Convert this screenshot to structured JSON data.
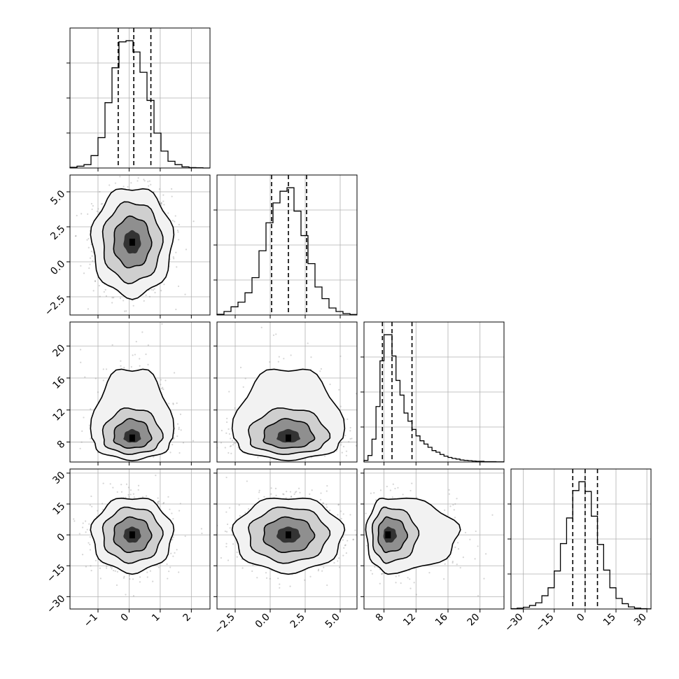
{
  "chart_data": {
    "type": "corner",
    "parameters": 4,
    "diagonal_type": "histogram",
    "off_diagonal_type": "scatter-density-contour",
    "grid": true,
    "quantile_lines": "dashed",
    "axes": [
      {
        "range": [
          -1.9,
          2.6
        ],
        "ticks": [
          -1,
          0,
          1,
          2
        ],
        "tick_labels": [
          "−1",
          "0",
          "1",
          "2"
        ]
      },
      {
        "range": [
          -3.8,
          6.2
        ],
        "ticks": [
          -2.5,
          0.0,
          2.5,
          5.0
        ],
        "tick_labels": [
          "−2.5",
          "0.0",
          "2.5",
          "5.0"
        ]
      },
      {
        "range": [
          5.5,
          23.0
        ],
        "ticks": [
          8,
          12,
          16,
          20
        ],
        "tick_labels": [
          "8",
          "12",
          "16",
          "20"
        ]
      },
      {
        "range": [
          -36,
          32
        ],
        "ticks": [
          -30,
          -15,
          0,
          15,
          30
        ],
        "tick_labels": [
          "−30",
          "−15",
          "0",
          "15",
          "30"
        ]
      }
    ],
    "histograms": [
      {
        "param": 0,
        "bin_edges": [
          -1.9,
          -1.675,
          -1.45,
          -1.225,
          -1.0,
          -0.775,
          -0.55,
          -0.325,
          -0.1,
          0.125,
          0.35,
          0.575,
          0.8,
          1.025,
          1.25,
          1.475,
          1.7,
          1.925,
          2.15,
          2.375,
          2.6
        ],
        "heights": [
          0.3,
          0.8,
          1.5,
          5.5,
          13.5,
          29.0,
          44.5,
          56.0,
          56.5,
          51.5,
          42.5,
          30.0,
          15.5,
          7.5,
          3.0,
          1.5,
          0.5,
          0.2,
          0.1,
          0.0
        ],
        "quantiles": [
          -0.35,
          0.15,
          0.7
        ]
      },
      {
        "param": 1,
        "bin_edges": [
          -3.8,
          -3.3,
          -2.8,
          -2.3,
          -1.8,
          -1.3,
          -0.8,
          -0.3,
          0.2,
          0.7,
          1.2,
          1.7,
          2.2,
          2.7,
          3.2,
          3.7,
          4.2,
          4.7,
          5.2,
          5.7,
          6.2
        ],
        "heights": [
          0.3,
          1.5,
          3.5,
          5.5,
          9.5,
          16.0,
          27.5,
          39.5,
          48.0,
          53.0,
          54.5,
          44.5,
          34.0,
          22.0,
          12.0,
          7.0,
          3.0,
          1.5,
          0.6,
          0.2
        ],
        "quantiles": [
          0.1,
          1.3,
          2.6
        ]
      },
      {
        "param": 2,
        "bin_edges": [
          5.5,
          6.0,
          6.5,
          7.0,
          7.5,
          8.0,
          8.5,
          9.0,
          9.5,
          10.0,
          10.5,
          11.0,
          11.5,
          12.0,
          12.5,
          13.0,
          13.5,
          14.0,
          14.5,
          15.0,
          15.5,
          16.0,
          16.5,
          17.0,
          17.5,
          18.0,
          18.5,
          19.0,
          19.5,
          20.0,
          20.5,
          21.0,
          21.5,
          22.0,
          22.5,
          23.0
        ],
        "heights": [
          0.5,
          2.0,
          7.0,
          17.0,
          31.0,
          39.0,
          39.0,
          32.5,
          25.0,
          20.5,
          15.0,
          12.5,
          10.0,
          8.0,
          6.5,
          5.5,
          4.5,
          3.5,
          3.0,
          2.3,
          1.8,
          1.4,
          1.1,
          0.9,
          0.6,
          0.5,
          0.4,
          0.3,
          0.2,
          0.2,
          0.1,
          0.1,
          0.1,
          0.05,
          0.05
        ],
        "quantiles": [
          7.8,
          9.0,
          11.5
        ]
      },
      {
        "param": 3,
        "bin_edges": [
          -36,
          -33,
          -30,
          -27,
          -24,
          -21,
          -18,
          -15,
          -12,
          -9,
          -6,
          -3,
          0,
          3,
          6,
          9,
          12,
          15,
          18,
          21,
          24,
          27,
          30,
          32
        ],
        "heights": [
          0.2,
          0.5,
          1.0,
          2.0,
          3.5,
          7.5,
          12.0,
          21.5,
          37.0,
          51.5,
          67.0,
          72.0,
          66.5,
          52.5,
          36.5,
          22.0,
          12.0,
          6.0,
          3.0,
          1.2,
          0.5,
          0.2,
          0.1
        ],
        "quantiles": [
          -6,
          0,
          6
        ]
      }
    ],
    "panels": [
      {
        "x_param": 0,
        "y_param": 1,
        "center": [
          0.1,
          1.4
        ],
        "spread": [
          0.5,
          1.5
        ],
        "skew": 0
      },
      {
        "x_param": 0,
        "y_param": 2,
        "center": [
          0.1,
          8.5
        ],
        "spread": [
          0.5,
          1.3
        ],
        "skew": 1
      },
      {
        "x_param": 1,
        "y_param": 2,
        "center": [
          1.3,
          8.5
        ],
        "spread": [
          1.5,
          1.3
        ],
        "skew": 1
      },
      {
        "x_param": 0,
        "y_param": 3,
        "center": [
          0.1,
          0.0
        ],
        "spread": [
          0.5,
          7.0
        ],
        "skew": 0
      },
      {
        "x_param": 1,
        "y_param": 3,
        "center": [
          1.3,
          0.0
        ],
        "spread": [
          1.5,
          7.0
        ],
        "skew": 0
      },
      {
        "x_param": 2,
        "y_param": 3,
        "center": [
          8.5,
          0.0
        ],
        "spread": [
          1.3,
          7.0
        ],
        "skew": 1
      }
    ],
    "colors": {
      "scatter": "#888888",
      "density": "#000000",
      "contour": "#000000",
      "histogram": "#000000",
      "grid": "#b0b0b0",
      "frame": "#000000"
    }
  }
}
